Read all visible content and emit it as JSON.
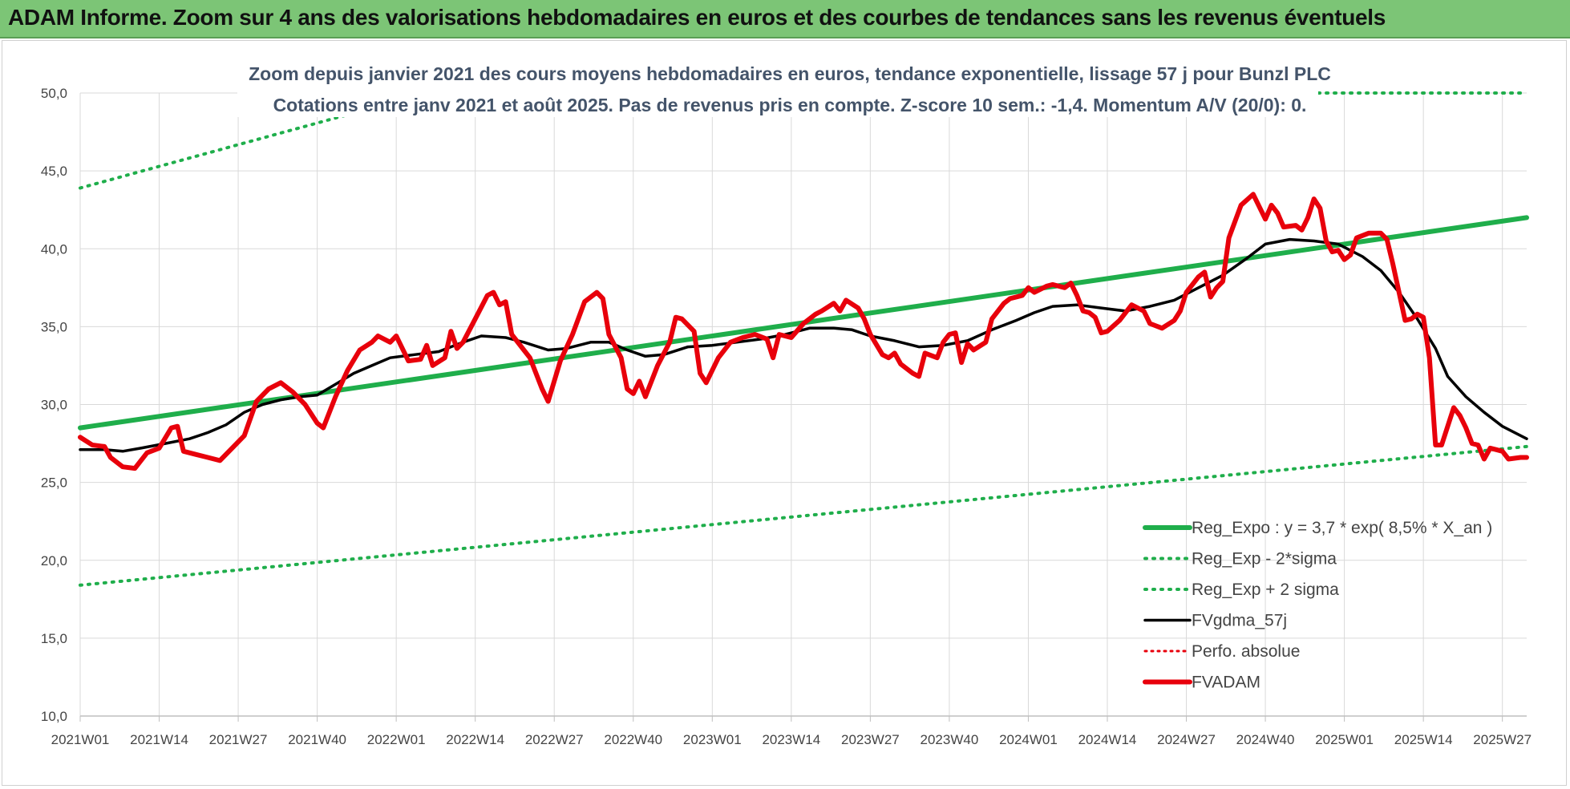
{
  "banner": {
    "title": "ADAM Informe. Zoom sur 4 ans des valorisations hebdomadaires en euros et des courbes de tendances sans les revenus éventuels"
  },
  "chart_data": {
    "type": "line",
    "title_lines": [
      "Zoom depuis janvier 2021 des cours moyens hebdomadaires en euros, tendance exponentielle, lissage 57 j pour Bunzl PLC",
      "Cotations entre janv 2021 et août 2025.  Pas de revenus pris en compte. Z-score 10 sem.: -1,4. Momentum A/V (20/0): 0."
    ],
    "ylim": [
      10,
      50
    ],
    "yticks": [
      "10,0",
      "15,0",
      "20,0",
      "25,0",
      "30,0",
      "35,0",
      "40,0",
      "45,0",
      "50,0"
    ],
    "xlim": [
      0,
      238
    ],
    "xticks": [
      {
        "i": 0,
        "label": "2021W01"
      },
      {
        "i": 13,
        "label": "2021W14"
      },
      {
        "i": 26,
        "label": "2021W27"
      },
      {
        "i": 39,
        "label": "2021W40"
      },
      {
        "i": 52,
        "label": "2022W01"
      },
      {
        "i": 65,
        "label": "2022W14"
      },
      {
        "i": 78,
        "label": "2022W27"
      },
      {
        "i": 91,
        "label": "2022W40"
      },
      {
        "i": 104,
        "label": "2023W01"
      },
      {
        "i": 117,
        "label": "2023W14"
      },
      {
        "i": 130,
        "label": "2023W27"
      },
      {
        "i": 143,
        "label": "2023W40"
      },
      {
        "i": 156,
        "label": "2024W01"
      },
      {
        "i": 169,
        "label": "2024W14"
      },
      {
        "i": 182,
        "label": "2024W27"
      },
      {
        "i": 195,
        "label": "2024W40"
      },
      {
        "i": 208,
        "label": "2025W01"
      },
      {
        "i": 221,
        "label": "2025W14"
      },
      {
        "i": 234,
        "label": "2025W27"
      }
    ],
    "grid": true,
    "legend_position": "bottom-right",
    "series": [
      {
        "name": "Reg_Expo : y = 3,7 * exp( 8,5% *  X_an )",
        "color": "#1fae4b",
        "style": "solid",
        "width": 6,
        "points": [
          [
            0,
            28.5
          ],
          [
            238,
            42.0
          ]
        ]
      },
      {
        "name": "Reg_Exp - 2*sigma",
        "color": "#1fae4b",
        "style": "dotted",
        "width": 4,
        "points": [
          [
            0,
            18.4
          ],
          [
            238,
            27.3
          ]
        ]
      },
      {
        "name": "Reg_Exp + 2 sigma",
        "color": "#1fae4b",
        "style": "dotted",
        "width": 4,
        "points": [
          [
            0,
            43.9
          ],
          [
            57,
            50.0
          ],
          [
            238,
            50.0
          ]
        ]
      },
      {
        "name": "FVgdma_57j",
        "color": "#000000",
        "style": "solid",
        "width": 3.5,
        "points": [
          [
            0,
            27.1
          ],
          [
            4,
            27.1
          ],
          [
            7,
            27.0
          ],
          [
            10,
            27.2
          ],
          [
            14,
            27.5
          ],
          [
            18,
            27.8
          ],
          [
            21,
            28.2
          ],
          [
            24,
            28.7
          ],
          [
            27,
            29.5
          ],
          [
            30,
            30.0
          ],
          [
            33,
            30.3
          ],
          [
            36,
            30.5
          ],
          [
            39,
            30.6
          ],
          [
            42,
            31.3
          ],
          [
            45,
            32.0
          ],
          [
            48,
            32.5
          ],
          [
            51,
            33.0
          ],
          [
            55,
            33.2
          ],
          [
            59,
            33.4
          ],
          [
            63,
            34.0
          ],
          [
            66,
            34.4
          ],
          [
            70,
            34.3
          ],
          [
            73,
            34.0
          ],
          [
            77,
            33.5
          ],
          [
            80,
            33.6
          ],
          [
            84,
            34.0
          ],
          [
            87,
            34.0
          ],
          [
            90,
            33.5
          ],
          [
            93,
            33.1
          ],
          [
            96,
            33.2
          ],
          [
            100,
            33.7
          ],
          [
            104,
            33.8
          ],
          [
            108,
            34.0
          ],
          [
            112,
            34.2
          ],
          [
            116,
            34.5
          ],
          [
            120,
            34.9
          ],
          [
            124,
            34.9
          ],
          [
            127,
            34.8
          ],
          [
            130,
            34.4
          ],
          [
            134,
            34.1
          ],
          [
            138,
            33.7
          ],
          [
            142,
            33.8
          ],
          [
            146,
            34.1
          ],
          [
            150,
            34.8
          ],
          [
            154,
            35.4
          ],
          [
            157,
            35.9
          ],
          [
            160,
            36.3
          ],
          [
            164,
            36.4
          ],
          [
            168,
            36.2
          ],
          [
            172,
            36.0
          ],
          [
            176,
            36.3
          ],
          [
            180,
            36.7
          ],
          [
            184,
            37.5
          ],
          [
            188,
            38.3
          ],
          [
            192,
            39.4
          ],
          [
            195,
            40.3
          ],
          [
            199,
            40.6
          ],
          [
            203,
            40.5
          ],
          [
            207,
            40.3
          ],
          [
            211,
            39.5
          ],
          [
            214,
            38.6
          ],
          [
            217,
            37.2
          ],
          [
            220,
            35.5
          ],
          [
            223,
            33.6
          ],
          [
            225,
            31.8
          ],
          [
            228,
            30.5
          ],
          [
            231,
            29.5
          ],
          [
            234,
            28.6
          ],
          [
            237,
            28.0
          ],
          [
            238,
            27.8
          ]
        ]
      },
      {
        "name": "Perfo. absolue",
        "color": "#e8000b",
        "style": "dotted",
        "width": 3,
        "points": []
      },
      {
        "name": "FVADAM",
        "color": "#e8000b",
        "style": "solid",
        "width": 6,
        "points": [
          [
            0,
            27.9
          ],
          [
            2,
            27.4
          ],
          [
            4,
            27.3
          ],
          [
            5,
            26.6
          ],
          [
            7,
            26.0
          ],
          [
            9,
            25.9
          ],
          [
            11,
            26.9
          ],
          [
            13,
            27.2
          ],
          [
            15,
            28.5
          ],
          [
            16,
            28.6
          ],
          [
            17,
            27.0
          ],
          [
            19,
            26.8
          ],
          [
            21,
            26.6
          ],
          [
            23,
            26.4
          ],
          [
            25,
            27.2
          ],
          [
            27,
            28.0
          ],
          [
            29,
            30.2
          ],
          [
            31,
            31.0
          ],
          [
            33,
            31.4
          ],
          [
            35,
            30.8
          ],
          [
            37,
            30.0
          ],
          [
            39,
            28.8
          ],
          [
            40,
            28.5
          ],
          [
            42,
            30.5
          ],
          [
            44,
            32.2
          ],
          [
            46,
            33.5
          ],
          [
            48,
            34.0
          ],
          [
            49,
            34.4
          ],
          [
            51,
            34.0
          ],
          [
            52,
            34.4
          ],
          [
            54,
            32.8
          ],
          [
            56,
            32.9
          ],
          [
            57,
            33.8
          ],
          [
            58,
            32.5
          ],
          [
            60,
            33.0
          ],
          [
            61,
            34.7
          ],
          [
            62,
            33.6
          ],
          [
            63,
            34.0
          ],
          [
            65,
            35.5
          ],
          [
            67,
            37.0
          ],
          [
            68,
            37.2
          ],
          [
            69,
            36.4
          ],
          [
            70,
            36.6
          ],
          [
            71,
            34.5
          ],
          [
            73,
            33.5
          ],
          [
            74,
            33.0
          ],
          [
            76,
            31.0
          ],
          [
            77,
            30.2
          ],
          [
            79,
            32.8
          ],
          [
            81,
            34.5
          ],
          [
            83,
            36.6
          ],
          [
            85,
            37.2
          ],
          [
            86,
            36.8
          ],
          [
            87,
            34.5
          ],
          [
            89,
            33.0
          ],
          [
            90,
            31.0
          ],
          [
            91,
            30.7
          ],
          [
            92,
            31.5
          ],
          [
            93,
            30.5
          ],
          [
            95,
            32.5
          ],
          [
            97,
            34.0
          ],
          [
            98,
            35.6
          ],
          [
            99,
            35.5
          ],
          [
            101,
            34.7
          ],
          [
            102,
            32.0
          ],
          [
            103,
            31.4
          ],
          [
            105,
            33.0
          ],
          [
            107,
            34.0
          ],
          [
            109,
            34.3
          ],
          [
            111,
            34.5
          ],
          [
            113,
            34.2
          ],
          [
            114,
            33.0
          ],
          [
            115,
            34.5
          ],
          [
            117,
            34.3
          ],
          [
            119,
            35.2
          ],
          [
            121,
            35.8
          ],
          [
            122,
            36.0
          ],
          [
            124,
            36.5
          ],
          [
            125,
            36.0
          ],
          [
            126,
            36.7
          ],
          [
            128,
            36.2
          ],
          [
            129,
            35.5
          ],
          [
            130,
            34.5
          ],
          [
            132,
            33.2
          ],
          [
            133,
            33.0
          ],
          [
            134,
            33.3
          ],
          [
            135,
            32.6
          ],
          [
            137,
            32.0
          ],
          [
            138,
            31.8
          ],
          [
            139,
            33.3
          ],
          [
            141,
            33.0
          ],
          [
            142,
            34.0
          ],
          [
            143,
            34.5
          ],
          [
            144,
            34.6
          ],
          [
            145,
            32.7
          ],
          [
            146,
            33.9
          ],
          [
            147,
            33.5
          ],
          [
            149,
            34.0
          ],
          [
            150,
            35.5
          ],
          [
            152,
            36.5
          ],
          [
            153,
            36.8
          ],
          [
            155,
            37.0
          ],
          [
            156,
            37.5
          ],
          [
            157,
            37.2
          ],
          [
            159,
            37.6
          ],
          [
            160,
            37.7
          ],
          [
            162,
            37.5
          ],
          [
            163,
            37.8
          ],
          [
            164,
            37.0
          ],
          [
            165,
            36.0
          ],
          [
            166,
            35.9
          ],
          [
            167,
            35.6
          ],
          [
            168,
            34.6
          ],
          [
            169,
            34.7
          ],
          [
            171,
            35.4
          ],
          [
            173,
            36.4
          ],
          [
            175,
            36.0
          ],
          [
            176,
            35.2
          ],
          [
            178,
            34.9
          ],
          [
            180,
            35.4
          ],
          [
            181,
            36.0
          ],
          [
            182,
            37.2
          ],
          [
            184,
            38.2
          ],
          [
            185,
            38.5
          ],
          [
            186,
            36.9
          ],
          [
            187,
            37.5
          ],
          [
            188,
            37.9
          ],
          [
            189,
            40.7
          ],
          [
            191,
            42.8
          ],
          [
            193,
            43.5
          ],
          [
            194,
            42.7
          ],
          [
            195,
            41.9
          ],
          [
            196,
            42.8
          ],
          [
            197,
            42.3
          ],
          [
            198,
            41.4
          ],
          [
            200,
            41.5
          ],
          [
            201,
            41.2
          ],
          [
            202,
            42.0
          ],
          [
            203,
            43.2
          ],
          [
            204,
            42.6
          ],
          [
            205,
            40.5
          ],
          [
            206,
            39.8
          ],
          [
            207,
            39.9
          ],
          [
            208,
            39.3
          ],
          [
            209,
            39.6
          ],
          [
            210,
            40.7
          ],
          [
            212,
            41.0
          ],
          [
            214,
            41.0
          ],
          [
            215,
            40.6
          ],
          [
            216,
            39.0
          ],
          [
            218,
            35.4
          ],
          [
            219,
            35.5
          ],
          [
            220,
            35.8
          ],
          [
            221,
            35.6
          ],
          [
            222,
            33.0
          ],
          [
            223,
            27.4
          ],
          [
            224,
            27.4
          ],
          [
            226,
            29.8
          ],
          [
            227,
            29.3
          ],
          [
            228,
            28.5
          ],
          [
            229,
            27.5
          ],
          [
            230,
            27.4
          ],
          [
            231,
            26.5
          ],
          [
            232,
            27.2
          ],
          [
            233,
            27.1
          ],
          [
            234,
            27.0
          ],
          [
            235,
            26.5
          ],
          [
            237,
            26.6
          ],
          [
            238,
            26.6
          ]
        ]
      }
    ]
  }
}
